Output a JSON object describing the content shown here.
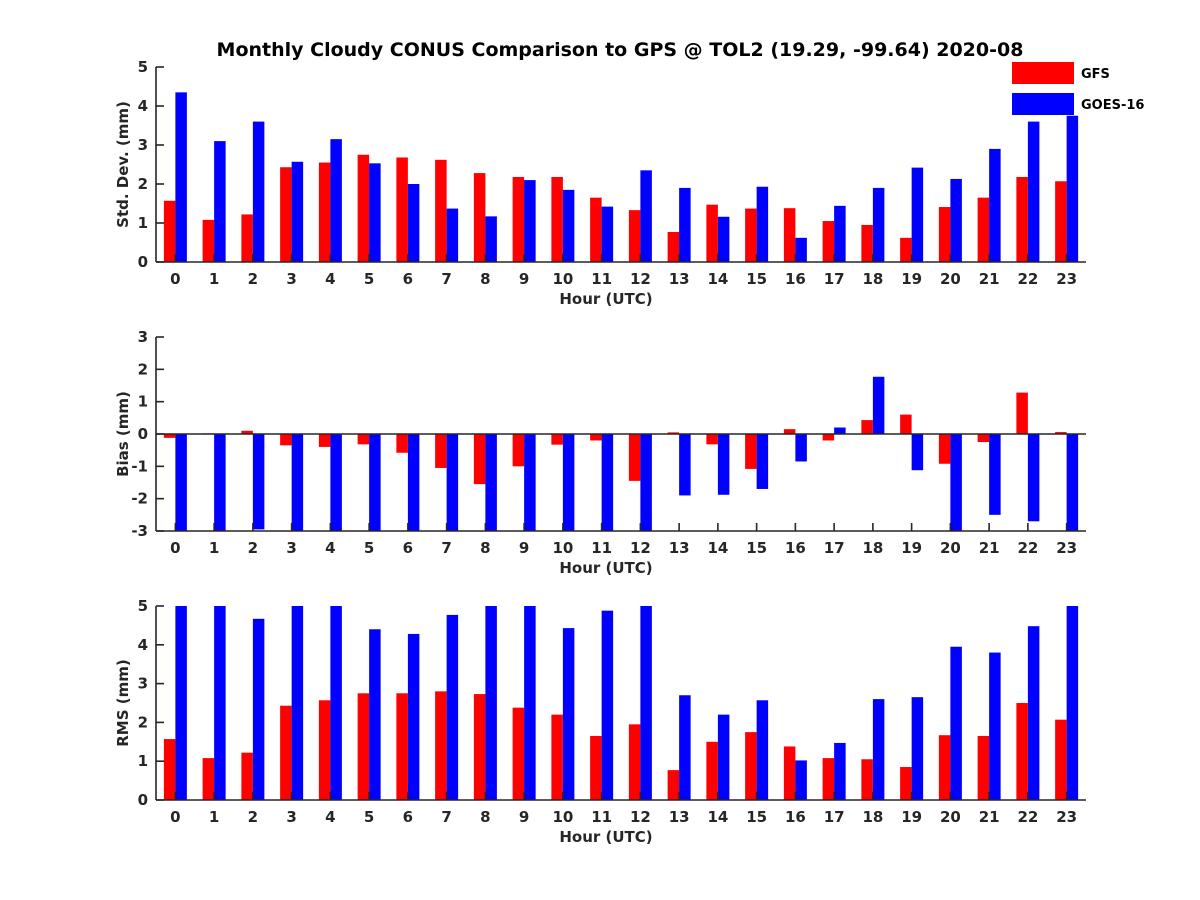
{
  "chart_data": {
    "title": "Monthly Cloudy CONUS Comparison to GPS @ TOL2 (19.29, -99.64) 2020-08",
    "legend": {
      "placement": "top-right",
      "entries": [
        {
          "name": "GFS",
          "color": "#ff0000"
        },
        {
          "name": "GOES-16",
          "color": "#0000ff"
        }
      ]
    },
    "panels": [
      {
        "type": "bar",
        "xlabel": "Hour (UTC)",
        "ylabel": "Std. Dev. (mm)",
        "categories": [
          "0",
          "1",
          "2",
          "3",
          "4",
          "5",
          "6",
          "7",
          "8",
          "9",
          "10",
          "11",
          "12",
          "13",
          "14",
          "15",
          "16",
          "17",
          "18",
          "19",
          "20",
          "21",
          "22",
          "23"
        ],
        "ylim": [
          0,
          5
        ],
        "yticks": [
          "0",
          "1",
          "2",
          "3",
          "4",
          "5"
        ],
        "series": [
          {
            "name": "GFS",
            "color": "#ff0000",
            "values": [
              1.57,
              1.08,
              1.22,
              2.43,
              2.55,
              2.75,
              2.68,
              2.62,
              2.28,
              2.18,
              2.18,
              1.65,
              1.33,
              0.77,
              1.47,
              1.37,
              1.38,
              1.05,
              0.95,
              0.62,
              1.41,
              1.65,
              2.18,
              2.07
            ]
          },
          {
            "name": "GOES-16",
            "color": "#0000ff",
            "values": [
              4.35,
              3.1,
              3.6,
              2.57,
              3.15,
              2.53,
              2.0,
              1.37,
              1.17,
              2.1,
              1.85,
              1.42,
              2.35,
              1.9,
              1.16,
              1.93,
              0.62,
              1.44,
              1.9,
              2.42,
              2.13,
              2.9,
              3.6,
              3.75
            ]
          }
        ]
      },
      {
        "type": "bar",
        "xlabel": "Hour (UTC)",
        "ylabel": "Bias (mm)",
        "categories": [
          "0",
          "1",
          "2",
          "3",
          "4",
          "5",
          "6",
          "7",
          "8",
          "9",
          "10",
          "11",
          "12",
          "13",
          "14",
          "15",
          "16",
          "17",
          "18",
          "19",
          "20",
          "21",
          "22",
          "23"
        ],
        "ylim": [
          -3,
          3
        ],
        "yticks": [
          "-3",
          "-2",
          "-1",
          "0",
          "1",
          "2",
          "3"
        ],
        "series": [
          {
            "name": "GFS",
            "color": "#ff0000",
            "values": [
              -0.12,
              0.02,
              0.1,
              -0.35,
              -0.4,
              -0.32,
              -0.58,
              -1.05,
              -1.55,
              -1.0,
              -0.33,
              -0.2,
              -1.45,
              0.05,
              -0.32,
              -1.08,
              0.15,
              -0.2,
              0.43,
              0.6,
              -0.92,
              -0.25,
              1.28,
              0.06
            ]
          },
          {
            "name": "GOES-16",
            "color": "#0000ff",
            "values": [
              -3.0,
              -3.0,
              -2.95,
              -3.0,
              -3.0,
              -3.0,
              -3.0,
              -3.0,
              -3.0,
              -3.0,
              -3.0,
              -3.0,
              -3.0,
              -1.9,
              -1.88,
              -1.7,
              -0.85,
              0.2,
              1.77,
              -1.12,
              -3.0,
              -2.5,
              -2.7,
              -3.0
            ]
          }
        ]
      },
      {
        "type": "bar",
        "xlabel": "Hour (UTC)",
        "ylabel": "RMS (mm)",
        "categories": [
          "0",
          "1",
          "2",
          "3",
          "4",
          "5",
          "6",
          "7",
          "8",
          "9",
          "10",
          "11",
          "12",
          "13",
          "14",
          "15",
          "16",
          "17",
          "18",
          "19",
          "20",
          "21",
          "22",
          "23"
        ],
        "ylim": [
          0,
          5
        ],
        "yticks": [
          "0",
          "1",
          "2",
          "3",
          "4",
          "5"
        ],
        "series": [
          {
            "name": "GFS",
            "color": "#ff0000",
            "values": [
              1.57,
              1.08,
              1.22,
              2.43,
              2.57,
              2.75,
              2.75,
              2.8,
              2.73,
              2.38,
              2.2,
              1.65,
              1.95,
              0.77,
              1.5,
              1.75,
              1.38,
              1.08,
              1.05,
              0.85,
              1.67,
              1.65,
              2.5,
              2.07
            ]
          },
          {
            "name": "GOES-16",
            "color": "#0000ff",
            "values": [
              5.0,
              5.0,
              4.67,
              5.0,
              5.0,
              4.4,
              4.28,
              4.77,
              5.0,
              5.0,
              4.43,
              4.88,
              5.0,
              2.7,
              2.2,
              2.57,
              1.02,
              1.47,
              2.6,
              2.65,
              3.95,
              3.8,
              4.48,
              5.0
            ]
          }
        ]
      }
    ]
  }
}
